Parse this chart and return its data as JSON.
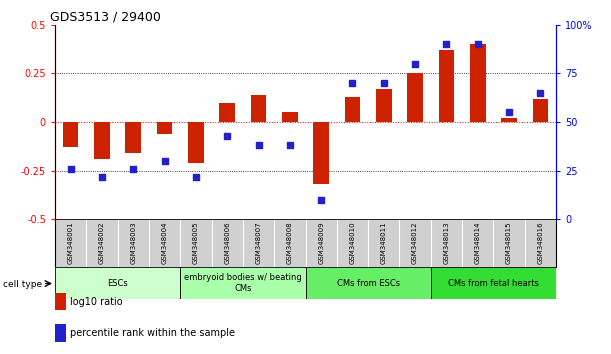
{
  "title": "GDS3513 / 29400",
  "samples": [
    "GSM348001",
    "GSM348002",
    "GSM348003",
    "GSM348004",
    "GSM348005",
    "GSM348006",
    "GSM348007",
    "GSM348008",
    "GSM348009",
    "GSM348010",
    "GSM348011",
    "GSM348012",
    "GSM348013",
    "GSM348014",
    "GSM348015",
    "GSM348016"
  ],
  "log10_ratio": [
    -0.13,
    -0.19,
    -0.16,
    -0.06,
    -0.21,
    0.1,
    0.14,
    0.05,
    -0.32,
    0.13,
    0.17,
    0.25,
    0.37,
    0.4,
    0.02,
    0.12
  ],
  "percentile_rank": [
    26,
    22,
    26,
    30,
    22,
    43,
    38,
    38,
    10,
    70,
    70,
    80,
    90,
    90,
    55,
    65
  ],
  "cell_groups": [
    {
      "label": "ESCs",
      "start": 0,
      "end": 3,
      "color": "#ccffcc"
    },
    {
      "label": "embryoid bodies w/ beating\nCMs",
      "start": 4,
      "end": 7,
      "color": "#aaffaa"
    },
    {
      "label": "CMs from ESCs",
      "start": 8,
      "end": 11,
      "color": "#66ee66"
    },
    {
      "label": "CMs from fetal hearts",
      "start": 12,
      "end": 15,
      "color": "#33dd33"
    }
  ],
  "ylim_left": [
    -0.5,
    0.5
  ],
  "ylim_right": [
    0,
    100
  ],
  "bar_color": "#cc2200",
  "dot_color": "#2222cc",
  "bar_width": 0.5,
  "dot_size": 18,
  "yticks_left": [
    -0.5,
    -0.25,
    0,
    0.25,
    0.5
  ],
  "yticks_right": [
    0,
    25,
    50,
    75,
    100
  ]
}
